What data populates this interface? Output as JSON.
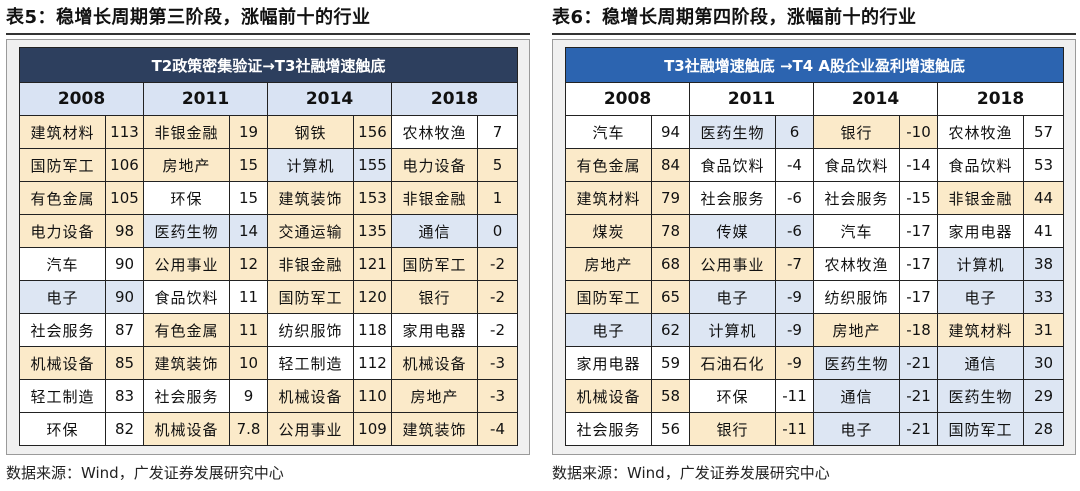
{
  "left": {
    "title": "表5：稳增长周期第三阶段，涨幅前十的行业",
    "banner": "T2政策密集验证→T3社融增速触底",
    "years": [
      "2008",
      "2011",
      "2014",
      "2018"
    ],
    "rows": [
      [
        {
          "n": "建筑材料",
          "v": "113",
          "c": "y"
        },
        {
          "n": "非银金融",
          "v": "19",
          "c": "y"
        },
        {
          "n": "钢铁",
          "v": "156",
          "c": "y"
        },
        {
          "n": "农林牧渔",
          "v": "7",
          "c": "w"
        }
      ],
      [
        {
          "n": "国防军工",
          "v": "106",
          "c": "y"
        },
        {
          "n": "房地产",
          "v": "15",
          "c": "y"
        },
        {
          "n": "计算机",
          "v": "155",
          "c": "b"
        },
        {
          "n": "电力设备",
          "v": "5",
          "c": "y"
        }
      ],
      [
        {
          "n": "有色金属",
          "v": "105",
          "c": "y"
        },
        {
          "n": "环保",
          "v": "15",
          "c": "w"
        },
        {
          "n": "建筑装饰",
          "v": "153",
          "c": "y"
        },
        {
          "n": "非银金融",
          "v": "1",
          "c": "y"
        }
      ],
      [
        {
          "n": "电力设备",
          "v": "98",
          "c": "y"
        },
        {
          "n": "医药生物",
          "v": "14",
          "c": "b"
        },
        {
          "n": "交通运输",
          "v": "135",
          "c": "y"
        },
        {
          "n": "通信",
          "v": "0",
          "c": "b"
        }
      ],
      [
        {
          "n": "汽车",
          "v": "90",
          "c": "w"
        },
        {
          "n": "公用事业",
          "v": "12",
          "c": "y"
        },
        {
          "n": "非银金融",
          "v": "121",
          "c": "y"
        },
        {
          "n": "国防军工",
          "v": "-2",
          "c": "y"
        }
      ],
      [
        {
          "n": "电子",
          "v": "90",
          "c": "b"
        },
        {
          "n": "食品饮料",
          "v": "11",
          "c": "w"
        },
        {
          "n": "国防军工",
          "v": "120",
          "c": "y"
        },
        {
          "n": "银行",
          "v": "-2",
          "c": "y"
        }
      ],
      [
        {
          "n": "社会服务",
          "v": "87",
          "c": "w"
        },
        {
          "n": "有色金属",
          "v": "11",
          "c": "y"
        },
        {
          "n": "纺织服饰",
          "v": "118",
          "c": "w"
        },
        {
          "n": "家用电器",
          "v": "-2",
          "c": "w"
        }
      ],
      [
        {
          "n": "机械设备",
          "v": "85",
          "c": "y"
        },
        {
          "n": "建筑装饰",
          "v": "10",
          "c": "y"
        },
        {
          "n": "轻工制造",
          "v": "112",
          "c": "w"
        },
        {
          "n": "机械设备",
          "v": "-3",
          "c": "y"
        }
      ],
      [
        {
          "n": "轻工制造",
          "v": "83",
          "c": "w"
        },
        {
          "n": "社会服务",
          "v": "9",
          "c": "w"
        },
        {
          "n": "机械设备",
          "v": "110",
          "c": "y"
        },
        {
          "n": "房地产",
          "v": "-3",
          "c": "y"
        }
      ],
      [
        {
          "n": "环保",
          "v": "82",
          "c": "w"
        },
        {
          "n": "机械设备",
          "v": "7.8",
          "c": "y"
        },
        {
          "n": "公用事业",
          "v": "109",
          "c": "y"
        },
        {
          "n": "建筑装饰",
          "v": "-4",
          "c": "y"
        }
      ]
    ],
    "source": "数据来源：Wind，广发证券发展研究中心"
  },
  "right": {
    "title": "表6：稳增长周期第四阶段，涨幅前十的行业",
    "banner": "T3社融增速触底 →T4 A股企业盈利增速触底",
    "years": [
      "2008",
      "2011",
      "2014",
      "2018"
    ],
    "rows": [
      [
        {
          "n": "汽车",
          "v": "94",
          "c": "w"
        },
        {
          "n": "医药生物",
          "v": "6",
          "c": "b"
        },
        {
          "n": "银行",
          "v": "-10",
          "c": "y"
        },
        {
          "n": "农林牧渔",
          "v": "57",
          "c": "w"
        }
      ],
      [
        {
          "n": "有色金属",
          "v": "84",
          "c": "y"
        },
        {
          "n": "食品饮料",
          "v": "-4",
          "c": "w"
        },
        {
          "n": "食品饮料",
          "v": "-14",
          "c": "w"
        },
        {
          "n": "食品饮料",
          "v": "53",
          "c": "w"
        }
      ],
      [
        {
          "n": "建筑材料",
          "v": "79",
          "c": "y"
        },
        {
          "n": "社会服务",
          "v": "-6",
          "c": "w"
        },
        {
          "n": "社会服务",
          "v": "-15",
          "c": "w"
        },
        {
          "n": "非银金融",
          "v": "44",
          "c": "y"
        }
      ],
      [
        {
          "n": "煤炭",
          "v": "78",
          "c": "y"
        },
        {
          "n": "传媒",
          "v": "-6",
          "c": "b"
        },
        {
          "n": "汽车",
          "v": "-17",
          "c": "w"
        },
        {
          "n": "家用电器",
          "v": "41",
          "c": "w"
        }
      ],
      [
        {
          "n": "房地产",
          "v": "68",
          "c": "y"
        },
        {
          "n": "公用事业",
          "v": "-7",
          "c": "y"
        },
        {
          "n": "农林牧渔",
          "v": "-17",
          "c": "w"
        },
        {
          "n": "计算机",
          "v": "38",
          "c": "b"
        }
      ],
      [
        {
          "n": "国防军工",
          "v": "65",
          "c": "y"
        },
        {
          "n": "电子",
          "v": "-9",
          "c": "b"
        },
        {
          "n": "纺织服饰",
          "v": "-17",
          "c": "w"
        },
        {
          "n": "电子",
          "v": "33",
          "c": "b"
        }
      ],
      [
        {
          "n": "电子",
          "v": "62",
          "c": "b"
        },
        {
          "n": "计算机",
          "v": "-9",
          "c": "b"
        },
        {
          "n": "房地产",
          "v": "-18",
          "c": "y"
        },
        {
          "n": "建筑材料",
          "v": "31",
          "c": "y"
        }
      ],
      [
        {
          "n": "家用电器",
          "v": "59",
          "c": "w"
        },
        {
          "n": "石油石化",
          "v": "-9",
          "c": "y"
        },
        {
          "n": "医药生物",
          "v": "-21",
          "c": "b"
        },
        {
          "n": "通信",
          "v": "30",
          "c": "b"
        }
      ],
      [
        {
          "n": "机械设备",
          "v": "58",
          "c": "y"
        },
        {
          "n": "环保",
          "v": "-11",
          "c": "w"
        },
        {
          "n": "通信",
          "v": "-21",
          "c": "b"
        },
        {
          "n": "医药生物",
          "v": "29",
          "c": "b"
        }
      ],
      [
        {
          "n": "社会服务",
          "v": "56",
          "c": "w"
        },
        {
          "n": "银行",
          "v": "-11",
          "c": "y"
        },
        {
          "n": "电子",
          "v": "-21",
          "c": "b"
        },
        {
          "n": "国防军工",
          "v": "28",
          "c": "b"
        }
      ]
    ],
    "source": "数据来源：Wind，广发证券发展研究中心"
  }
}
